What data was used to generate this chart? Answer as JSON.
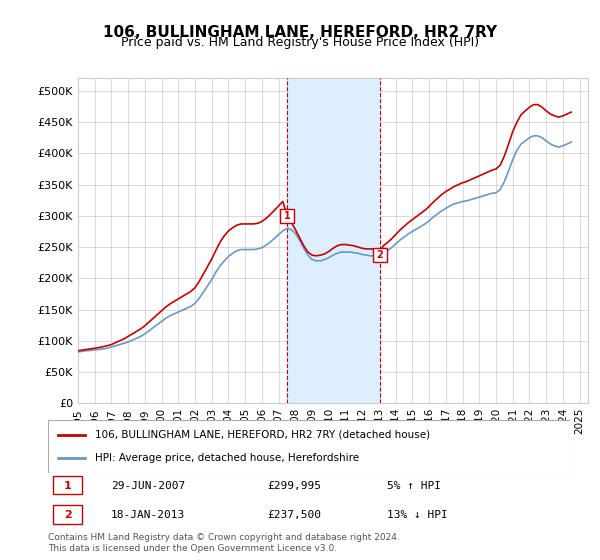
{
  "title": "106, BULLINGHAM LANE, HEREFORD, HR2 7RY",
  "subtitle": "Price paid vs. HM Land Registry's House Price Index (HPI)",
  "yticks": [
    0,
    50000,
    100000,
    150000,
    200000,
    250000,
    300000,
    350000,
    400000,
    450000,
    500000
  ],
  "ylabels": [
    "£0",
    "£50K",
    "£100K",
    "£150K",
    "£200K",
    "£250K",
    "£300K",
    "£350K",
    "£400K",
    "£450K",
    "£500K"
  ],
  "ymin": 0,
  "ymax": 520000,
  "xmin": 1995.0,
  "xmax": 2025.5,
  "sale1_x": 2007.49,
  "sale1_y": 299995,
  "sale1_label": "1",
  "sale1_date": "29-JUN-2007",
  "sale1_price": "£299,995",
  "sale1_hpi": "5% ↑ HPI",
  "sale2_x": 2013.05,
  "sale2_y": 237500,
  "sale2_label": "2",
  "sale2_date": "18-JAN-2013",
  "sale2_price": "£237,500",
  "sale2_hpi": "13% ↓ HPI",
  "property_color": "#cc0000",
  "hpi_color": "#6699cc",
  "shading_color": "#ddeeff",
  "vline_color": "#cc0000",
  "legend_property": "106, BULLINGHAM LANE, HEREFORD, HR2 7RY (detached house)",
  "legend_hpi": "HPI: Average price, detached house, Herefordshire",
  "footnote": "Contains HM Land Registry data © Crown copyright and database right 2024.\nThis data is licensed under the Open Government Licence v3.0.",
  "xtick_years": [
    1995,
    1996,
    1997,
    1998,
    1999,
    2000,
    2001,
    2002,
    2003,
    2004,
    2005,
    2006,
    2007,
    2008,
    2009,
    2010,
    2011,
    2012,
    2013,
    2014,
    2015,
    2016,
    2017,
    2018,
    2019,
    2020,
    2021,
    2022,
    2023,
    2024,
    2025
  ],
  "hpi_data_x": [
    1995.0,
    1995.25,
    1995.5,
    1995.75,
    1996.0,
    1996.25,
    1996.5,
    1996.75,
    1997.0,
    1997.25,
    1997.5,
    1997.75,
    1998.0,
    1998.25,
    1998.5,
    1998.75,
    1999.0,
    1999.25,
    1999.5,
    1999.75,
    2000.0,
    2000.25,
    2000.5,
    2000.75,
    2001.0,
    2001.25,
    2001.5,
    2001.75,
    2002.0,
    2002.25,
    2002.5,
    2002.75,
    2003.0,
    2003.25,
    2003.5,
    2003.75,
    2004.0,
    2004.25,
    2004.5,
    2004.75,
    2005.0,
    2005.25,
    2005.5,
    2005.75,
    2006.0,
    2006.25,
    2006.5,
    2006.75,
    2007.0,
    2007.25,
    2007.5,
    2007.75,
    2008.0,
    2008.25,
    2008.5,
    2008.75,
    2009.0,
    2009.25,
    2009.5,
    2009.75,
    2010.0,
    2010.25,
    2010.5,
    2010.75,
    2011.0,
    2011.25,
    2011.5,
    2011.75,
    2012.0,
    2012.25,
    2012.5,
    2012.75,
    2013.0,
    2013.25,
    2013.5,
    2013.75,
    2014.0,
    2014.25,
    2014.5,
    2014.75,
    2015.0,
    2015.25,
    2015.5,
    2015.75,
    2016.0,
    2016.25,
    2016.5,
    2016.75,
    2017.0,
    2017.25,
    2017.5,
    2017.75,
    2018.0,
    2018.25,
    2018.5,
    2018.75,
    2019.0,
    2019.25,
    2019.5,
    2019.75,
    2020.0,
    2020.25,
    2020.5,
    2020.75,
    2021.0,
    2021.25,
    2021.5,
    2021.75,
    2022.0,
    2022.25,
    2022.5,
    2022.75,
    2023.0,
    2023.25,
    2023.5,
    2023.75,
    2024.0,
    2024.25,
    2024.5
  ],
  "hpi_data_y": [
    82000,
    83000,
    84000,
    84500,
    85500,
    86000,
    87000,
    88000,
    90000,
    92000,
    94000,
    96000,
    98000,
    101000,
    104000,
    107000,
    111000,
    116000,
    121000,
    126000,
    131000,
    136000,
    140000,
    143000,
    146000,
    149000,
    152000,
    155000,
    160000,
    168000,
    178000,
    188000,
    198000,
    210000,
    220000,
    228000,
    235000,
    240000,
    244000,
    246000,
    246000,
    246000,
    246000,
    247000,
    249000,
    253000,
    258000,
    264000,
    270000,
    276000,
    280000,
    278000,
    272000,
    261000,
    248000,
    237000,
    230000,
    228000,
    228000,
    230000,
    233000,
    237000,
    240000,
    242000,
    242000,
    242000,
    241000,
    240000,
    238000,
    237000,
    236000,
    236000,
    237000,
    240000,
    244000,
    249000,
    255000,
    261000,
    266000,
    271000,
    275000,
    279000,
    283000,
    287000,
    292000,
    298000,
    303000,
    308000,
    312000,
    316000,
    319000,
    321000,
    323000,
    324000,
    326000,
    328000,
    330000,
    332000,
    334000,
    336000,
    337000,
    342000,
    355000,
    372000,
    390000,
    405000,
    415000,
    420000,
    425000,
    428000,
    428000,
    425000,
    420000,
    415000,
    412000,
    410000,
    412000,
    415000,
    418000
  ],
  "property_data_x": [
    1995.0,
    1995.25,
    1995.5,
    1995.75,
    1996.0,
    1996.25,
    1996.5,
    1996.75,
    1997.0,
    1997.25,
    1997.5,
    1997.75,
    1998.0,
    1998.25,
    1998.5,
    1998.75,
    1999.0,
    1999.25,
    1999.5,
    1999.75,
    2000.0,
    2000.25,
    2000.5,
    2000.75,
    2001.0,
    2001.25,
    2001.5,
    2001.75,
    2002.0,
    2002.25,
    2002.5,
    2002.75,
    2003.0,
    2003.25,
    2003.5,
    2003.75,
    2004.0,
    2004.25,
    2004.5,
    2004.75,
    2005.0,
    2005.25,
    2005.5,
    2005.75,
    2006.0,
    2006.25,
    2006.5,
    2006.75,
    2007.0,
    2007.25,
    2007.5,
    2007.75,
    2008.0,
    2008.25,
    2008.5,
    2008.75,
    2009.0,
    2009.25,
    2009.5,
    2009.75,
    2010.0,
    2010.25,
    2010.5,
    2010.75,
    2011.0,
    2011.25,
    2011.5,
    2011.75,
    2012.0,
    2012.25,
    2012.5,
    2012.75,
    2013.0,
    2013.25,
    2013.5,
    2013.75,
    2014.0,
    2014.25,
    2014.5,
    2014.75,
    2015.0,
    2015.25,
    2015.5,
    2015.75,
    2016.0,
    2016.25,
    2016.5,
    2016.75,
    2017.0,
    2017.25,
    2017.5,
    2017.75,
    2018.0,
    2018.25,
    2018.5,
    2018.75,
    2019.0,
    2019.25,
    2019.5,
    2019.75,
    2020.0,
    2020.25,
    2020.5,
    2020.75,
    2021.0,
    2021.25,
    2021.5,
    2021.75,
    2022.0,
    2022.25,
    2022.5,
    2022.75,
    2023.0,
    2023.25,
    2023.5,
    2023.75,
    2024.0,
    2024.25,
    2024.5
  ],
  "property_data_y": [
    84000,
    85000,
    86000,
    87000,
    88000,
    89000,
    90500,
    92000,
    94000,
    97000,
    100000,
    103000,
    107000,
    111000,
    115000,
    119000,
    124000,
    130000,
    136000,
    142000,
    148000,
    154000,
    159000,
    163000,
    167000,
    171000,
    175000,
    179000,
    185000,
    195000,
    207000,
    219000,
    231000,
    245000,
    258000,
    268000,
    276000,
    281000,
    285000,
    287000,
    287000,
    287000,
    287000,
    288000,
    291000,
    296000,
    302000,
    309000,
    316000,
    323000,
    300000,
    290000,
    278000,
    265000,
    252000,
    242000,
    237000,
    236000,
    237000,
    239000,
    243000,
    248000,
    252000,
    254000,
    254000,
    253000,
    252000,
    250000,
    248000,
    247000,
    247000,
    247000,
    237500,
    252000,
    257000,
    263000,
    270000,
    277000,
    283000,
    289000,
    294000,
    299000,
    304000,
    309000,
    315000,
    322000,
    328000,
    334000,
    339000,
    343000,
    347000,
    350000,
    353000,
    355000,
    358000,
    361000,
    364000,
    367000,
    370000,
    373000,
    375000,
    381000,
    396000,
    415000,
    435000,
    450000,
    462000,
    468000,
    474000,
    478000,
    478000,
    474000,
    468000,
    463000,
    460000,
    458000,
    460000,
    463000,
    466000
  ]
}
